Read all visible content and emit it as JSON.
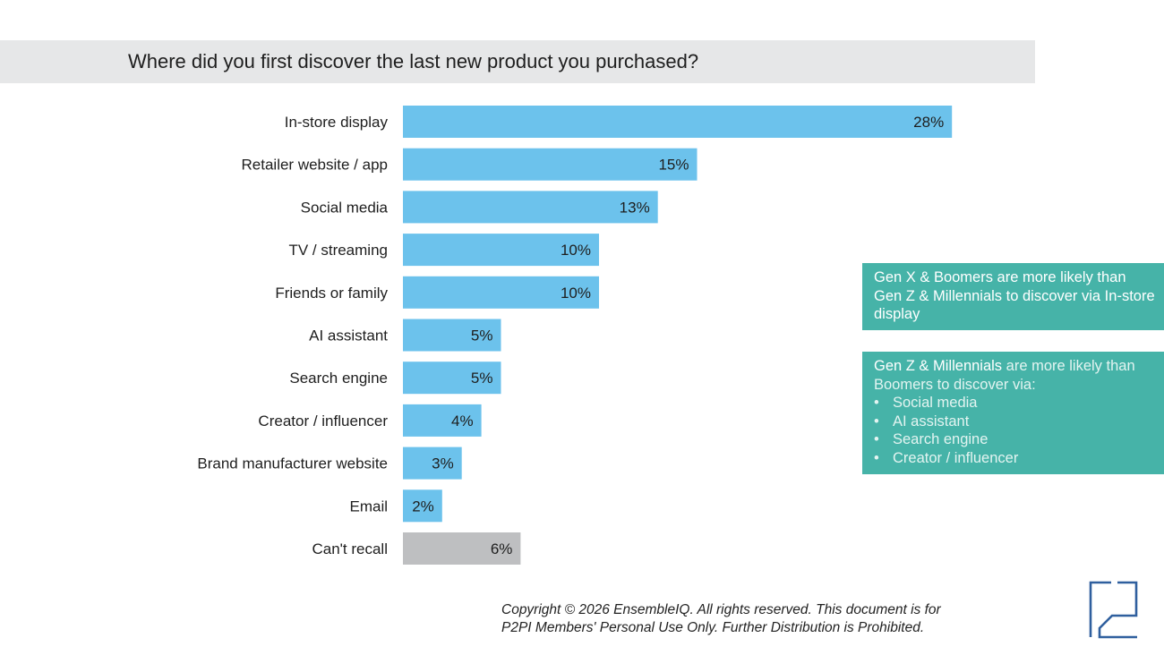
{
  "chart_data": {
    "type": "bar",
    "orientation": "horizontal",
    "title": "Where did you first discover the last new product you purchased?",
    "categories": [
      "In-store display",
      "Retailer website / app",
      "Social media",
      "TV / streaming",
      "Friends or family",
      "AI assistant",
      "Search engine",
      "Creator / influencer",
      "Brand manufacturer website",
      "Email",
      "Can't recall"
    ],
    "values": [
      28,
      15,
      13,
      10,
      10,
      5,
      5,
      4,
      3,
      2,
      6
    ],
    "value_labels": [
      "28%",
      "15%",
      "13%",
      "10%",
      "10%",
      "5%",
      "5%",
      "4%",
      "3%",
      "2%",
      "6%"
    ],
    "unit": "%",
    "bar_colors": [
      "#6cc2ec",
      "#6cc2ec",
      "#6cc2ec",
      "#6cc2ec",
      "#6cc2ec",
      "#6cc2ec",
      "#6cc2ec",
      "#6cc2ec",
      "#6cc2ec",
      "#6cc2ec",
      "#bebfc1"
    ],
    "grid": false,
    "legend": "none"
  },
  "callouts": {
    "first": {
      "text": "Gen X & Boomers are more likely than Gen Z & Millennials to discover via In-store display"
    },
    "second": {
      "lead_bold": "Gen Z & Millennials",
      "lead_rest": " are more likely than Boomers to discover via:",
      "items": [
        "Social media",
        "AI assistant",
        "Search engine",
        "Creator / influencer"
      ]
    }
  },
  "footer": {
    "copyright_line1": "Copyright © 2026 EnsembleIQ. All rights reserved. This document is for",
    "copyright_line2": "P2PI Members' Personal Use Only. Further Distribution is Prohibited."
  },
  "logo": {
    "icon": "p2pi-logo-icon",
    "color": "#2f5f9e"
  },
  "colors": {
    "bar": "#6cc2ec",
    "bar_muted": "#bebfc1",
    "callout": "#46b3a8",
    "title_band": "#e6e7e8"
  }
}
